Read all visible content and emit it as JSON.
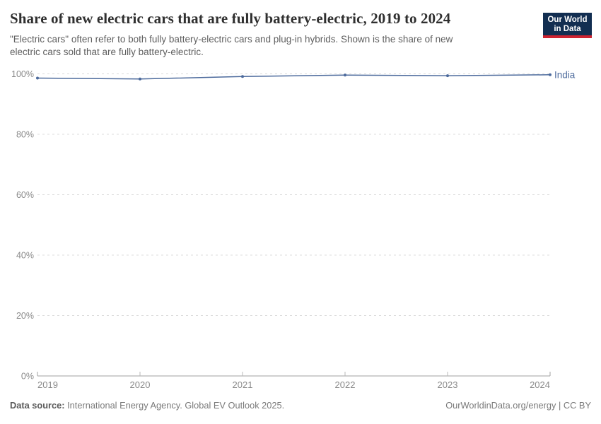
{
  "header": {
    "title": "Share of new electric cars that are fully battery-electric, 2019 to 2024",
    "subtitle_line1": "\"Electric cars\" often refer to both fully battery-electric cars and plug-in hybrids. Shown is the share of new",
    "subtitle_line2": "electric cars sold that are fully battery-electric.",
    "logo_line1": "Our World",
    "logo_line2": "in Data"
  },
  "chart_data": {
    "type": "line",
    "title": "Share of new electric cars that are fully battery-electric, 2019 to 2024",
    "x": [
      2019,
      2020,
      2021,
      2022,
      2023,
      2024
    ],
    "x_labels": [
      "2019",
      "2020",
      "2021",
      "2022",
      "2023",
      "2024"
    ],
    "series": [
      {
        "name": "India",
        "color": "#4C6A9C",
        "values": [
          98.6,
          98.3,
          99.1,
          99.6,
          99.4,
          99.7
        ]
      }
    ],
    "xlabel": "",
    "ylabel": "",
    "ylim": [
      0,
      100
    ],
    "ytick_values": [
      0,
      20,
      40,
      60,
      80,
      100
    ],
    "ytick_labels": [
      "0%",
      "20%",
      "40%",
      "60%",
      "80%",
      "100%"
    ],
    "grid": "horizontal-dashed",
    "legend": "end-of-line-label"
  },
  "footer": {
    "source_label": "Data source:",
    "source_text": "International Energy Agency. Global EV Outlook 2025.",
    "attribution": "OurWorldinData.org/energy | CC BY"
  },
  "colors": {
    "series_blue": "#4C6A9C",
    "gridline": "#dcdcdc",
    "axis": "#a1a1a1",
    "tick": "#b8b8b8",
    "tick_label": "#8a8a8a",
    "title_text": "#2f2f2f",
    "subtitle_text": "#5f5f5f",
    "logo_bg": "#122E51",
    "logo_accent": "#CE2331"
  }
}
